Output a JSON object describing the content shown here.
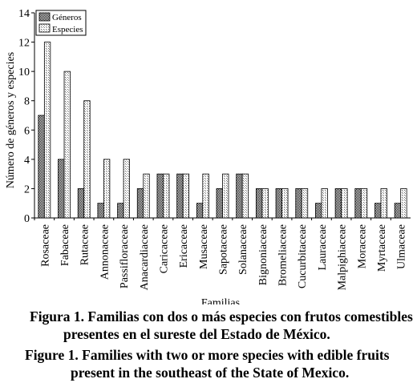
{
  "chart_data": {
    "type": "bar",
    "title": "",
    "xlabel": "Familias",
    "ylabel": "Número de géneros y especies",
    "ylim": [
      0,
      14
    ],
    "yticks": [
      0,
      2,
      4,
      6,
      8,
      10,
      12,
      14
    ],
    "grid": false,
    "legend_position": "top-left",
    "categories": [
      "Rosaceae",
      "Fabaceae",
      "Rutaceae",
      "Annonaceae",
      "Passifloraceae",
      "Anacardiaceae",
      "Caricaceae",
      "Ericaceae",
      "Musaceae",
      "Sapotaceae",
      "Solanaceae",
      "Bignoniaceae",
      "Bromeliaceae",
      "Cucurbitaceae",
      "Lauraceae",
      "Malpighiaceae",
      "Moraceae",
      "Myrtaceae",
      "Ulmaceae"
    ],
    "series": [
      {
        "name": "Géneros",
        "pattern": "dense-checker",
        "values": [
          7,
          4,
          2,
          1,
          1,
          2,
          3,
          3,
          1,
          2,
          3,
          2,
          2,
          2,
          1,
          2,
          2,
          1,
          1
        ]
      },
      {
        "name": "Especies",
        "pattern": "light-hatch",
        "values": [
          12,
          10,
          8,
          4,
          4,
          3,
          3,
          3,
          3,
          3,
          3,
          2,
          2,
          2,
          2,
          2,
          2,
          2,
          2
        ]
      }
    ]
  },
  "caption": {
    "es_line1": "Figura 1. Familias con dos o más especies con frutos comestibles",
    "es_line2": "presentes en el sureste del Estado de México.",
    "en_line1": "Figure 1. Families with two or more species with edible fruits",
    "en_line2": "present in the southeast of the State of Mexico."
  }
}
